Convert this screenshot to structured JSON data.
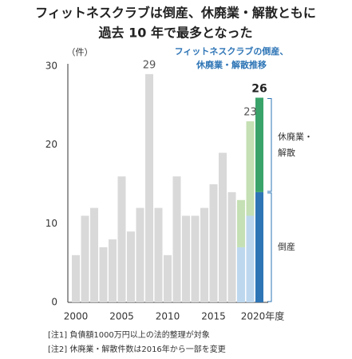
{
  "chart_data": {
    "type": "stacked-bar",
    "title": [
      "フィットネスクラブは倒産、休廃業・解散ともに",
      "過去 10 年で最多となった"
    ],
    "subtitle": [
      "フィットネスクラブの倒産、",
      "休廃業・解散推移"
    ],
    "y_unit": "（件）",
    "categories": [
      "2000",
      null,
      null,
      null,
      null,
      "2005",
      null,
      null,
      null,
      null,
      "2010",
      null,
      null,
      null,
      null,
      "2015",
      null,
      null,
      null,
      null,
      "2020年度"
    ],
    "series": [
      {
        "color": "#d9d9d9",
        "values": [
          6,
          11,
          12,
          7,
          8,
          16,
          9,
          12,
          29,
          12,
          6,
          16,
          11,
          11,
          12,
          15,
          19,
          14,
          null,
          null,
          null
        ]
      },
      {
        "name": "倒産",
        "colors": [
          null,
          null,
          null,
          null,
          null,
          null,
          null,
          null,
          null,
          null,
          null,
          null,
          null,
          null,
          null,
          null,
          null,
          null,
          "#bdd7ee",
          "#bdd7ee",
          "#2e75b6"
        ],
        "values": [
          null,
          null,
          null,
          null,
          null,
          null,
          null,
          null,
          null,
          null,
          null,
          null,
          null,
          null,
          null,
          null,
          null,
          null,
          7,
          11,
          14
        ]
      },
      {
        "name": "休廃業・解散",
        "colors": [
          null,
          null,
          null,
          null,
          null,
          null,
          null,
          null,
          null,
          null,
          null,
          null,
          null,
          null,
          null,
          null,
          null,
          null,
          "#c5e0b4",
          "#c5e0b4",
          "#3aa36a"
        ],
        "values": [
          null,
          null,
          null,
          null,
          null,
          null,
          null,
          null,
          null,
          null,
          null,
          null,
          null,
          null,
          null,
          null,
          null,
          null,
          6,
          12,
          12
        ]
      }
    ],
    "totals": [
      null,
      null,
      null,
      null,
      null,
      null,
      null,
      null,
      29,
      null,
      null,
      null,
      null,
      null,
      null,
      null,
      null,
      null,
      null,
      23,
      26
    ],
    "ylim": [
      0,
      30
    ],
    "yticks": [
      0,
      10,
      20,
      30
    ],
    "grid": false,
    "notes": [
      "[注1] 負債額1000万円以上の法的整理が対象",
      "[注2] 休廃業・解散件数は2016年から一部を変更"
    ]
  }
}
